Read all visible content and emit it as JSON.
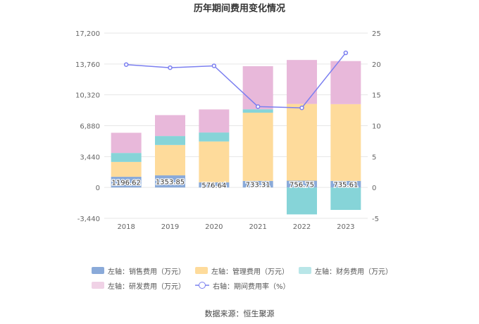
{
  "chart_data": {
    "type": "bar",
    "title": "历年期间费用变化情况",
    "categories": [
      "2018",
      "2019",
      "2020",
      "2021",
      "2022",
      "2023"
    ],
    "left_axis": {
      "ylim": [
        -3440,
        17200
      ],
      "ticks": [
        -3440,
        0,
        3440,
        6880,
        10320,
        13760,
        17200
      ],
      "tick_labels": [
        "-3,440",
        "0",
        "3,440",
        "6,880",
        "10,320",
        "13,760",
        "17,200"
      ]
    },
    "right_axis": {
      "ylim": [
        -5,
        25
      ],
      "ticks": [
        -5,
        0,
        5,
        10,
        15,
        20,
        25
      ],
      "tick_labels": [
        "-5",
        "0",
        "5",
        "10",
        "15",
        "20",
        "25"
      ]
    },
    "grid": true,
    "stacked": true,
    "series": [
      {
        "name": "左轴：销售费用（万元）",
        "color": "#8aaad9",
        "values": [
          1196.62,
          1353.85,
          576.64,
          733.31,
          756.75,
          735.61
        ],
        "data_labels": [
          "1196.62",
          "1353.85",
          "576.64",
          "733.31",
          "756.75",
          "735.61"
        ]
      },
      {
        "name": "左轴：管理费用（万元）",
        "color": "#fedb9b",
        "values": [
          1650,
          3380,
          4550,
          7600,
          8550,
          8550
        ]
      },
      {
        "name": "左轴：财务费用（万元）",
        "color": "#86d4d8",
        "values": [
          1000,
          1000,
          1000,
          380,
          -3000,
          -2500
        ]
      },
      {
        "name": "左轴：研发费用（万元）",
        "color": "#e8b8da",
        "values": [
          2250,
          2330,
          2570,
          4800,
          4900,
          4800
        ]
      },
      {
        "name": "右轴：期间费用率（%）",
        "color": "#7b7ff0",
        "axis": "right",
        "type": "line",
        "values": [
          19.9,
          19.4,
          19.7,
          13.1,
          12.9,
          21.8
        ]
      }
    ],
    "legend_position": "bottom"
  },
  "footer": {
    "source": "数据来源：恒生聚源"
  }
}
